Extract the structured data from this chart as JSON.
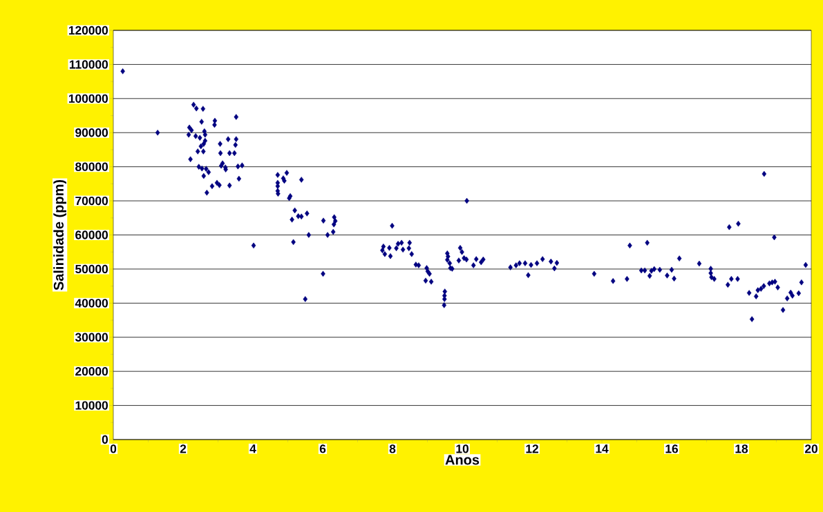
{
  "chart_data": {
    "type": "scatter",
    "xlabel": "Anos",
    "ylabel": "Salinidade (ppm)",
    "x": [
      0.27,
      1.27,
      2.3,
      2.38,
      2.57,
      3.52,
      2.53,
      2.91,
      2.9,
      2.18,
      2.24,
      2.16,
      2.61,
      2.63,
      2.36,
      2.48,
      2.63,
      2.59,
      2.51,
      3.06,
      3.29,
      3.52,
      3.5,
      2.42,
      2.58,
      3.07,
      3.33,
      3.47,
      2.21,
      3.13,
      3.09,
      3.21,
      3.22,
      3.57,
      3.69,
      2.45,
      2.54,
      2.66,
      2.73,
      2.59,
      3.6,
      2.83,
      2.97,
      3.04,
      3.33,
      2.68,
      4.02,
      4.71,
      4.87,
      4.97,
      4.9,
      4.71,
      4.71,
      4.71,
      4.72,
      5.39,
      5.07,
      5.04,
      5.2,
      5.12,
      5.3,
      5.39,
      5.55,
      6.02,
      6.33,
      6.36,
      6.32,
      6.3,
      6.14,
      5.6,
      5.16,
      6.01,
      5.5,
      7.99,
      10.13,
      7.74,
      7.71,
      7.91,
      7.78,
      7.94,
      8.11,
      8.16,
      8.26,
      8.3,
      8.47,
      8.49,
      8.55,
      8.67,
      8.75,
      8.98,
      9.01,
      9.06,
      8.95,
      9.11,
      9.5,
      9.49,
      9.49,
      9.48,
      9.57,
      9.59,
      9.57,
      9.64,
      9.66,
      9.71,
      9.94,
      9.99,
      9.9,
      10.05,
      10.12,
      10.32,
      10.4,
      10.54,
      10.6,
      11.38,
      11.54,
      11.64,
      11.8,
      11.89,
      11.97,
      12.14,
      12.3,
      12.54,
      12.64,
      12.71,
      13.78,
      14.32,
      14.72,
      14.8,
      15.3,
      15.13,
      15.23,
      15.37,
      15.42,
      15.5,
      15.66,
      15.87,
      16.0,
      16.07,
      16.22,
      16.79,
      17.12,
      17.12,
      17.14,
      17.22,
      17.61,
      17.65,
      17.91,
      17.71,
      17.89,
      18.65,
      18.94,
      18.22,
      18.42,
      18.3,
      18.47,
      18.56,
      18.64,
      18.8,
      18.88,
      18.96,
      19.04,
      19.19,
      19.31,
      19.41,
      19.46,
      19.64,
      19.72,
      19.84
    ],
    "values": [
      108000,
      90000,
      98200,
      97100,
      97000,
      94600,
      93200,
      93500,
      92300,
      91500,
      90700,
      89400,
      90400,
      89400,
      89000,
      88500,
      87600,
      86700,
      86000,
      86700,
      88100,
      88100,
      86400,
      84500,
      84500,
      84000,
      84000,
      84000,
      82200,
      81000,
      80300,
      79800,
      79200,
      80100,
      80400,
      80000,
      79500,
      79400,
      78400,
      77300,
      76500,
      74300,
      75300,
      74600,
      74500,
      72400,
      56900,
      77600,
      76600,
      78200,
      75900,
      75300,
      74300,
      72900,
      72100,
      76200,
      71400,
      70800,
      67200,
      64500,
      65500,
      65400,
      66300,
      64200,
      65200,
      64100,
      63100,
      60900,
      60000,
      60000,
      57900,
      48600,
      41200,
      62700,
      70000,
      56600,
      55500,
      56200,
      54400,
      53800,
      56100,
      57400,
      57700,
      55700,
      56100,
      57700,
      54400,
      51300,
      51100,
      50300,
      49300,
      48600,
      46600,
      46300,
      43400,
      42200,
      41200,
      39400,
      54600,
      53700,
      52700,
      51700,
      50300,
      50100,
      56200,
      55000,
      52500,
      53200,
      52800,
      51100,
      52900,
      52000,
      52800,
      50500,
      51100,
      51700,
      51700,
      48200,
      51200,
      51700,
      52900,
      52200,
      50200,
      51800,
      48600,
      46500,
      47100,
      56900,
      57700,
      49600,
      49600,
      48000,
      49500,
      50000,
      49800,
      48100,
      49800,
      47200,
      53100,
      51600,
      50100,
      48800,
      47600,
      47100,
      45400,
      62300,
      63300,
      47100,
      47100,
      77900,
      59300,
      43000,
      42000,
      35300,
      43800,
      44200,
      45000,
      45800,
      46100,
      46300,
      44600,
      38000,
      41400,
      43100,
      42200,
      42900,
      46100,
      51200
    ],
    "color": "#000080",
    "marker": "diamond",
    "xlim": [
      0,
      20
    ],
    "xticks": [
      0,
      2,
      4,
      6,
      8,
      10,
      12,
      14,
      16,
      18,
      20
    ],
    "ylim": [
      0,
      120000
    ],
    "yticks": [
      0,
      10000,
      20000,
      30000,
      40000,
      50000,
      60000,
      70000,
      80000,
      90000,
      100000,
      110000,
      120000
    ],
    "grid": "y"
  }
}
